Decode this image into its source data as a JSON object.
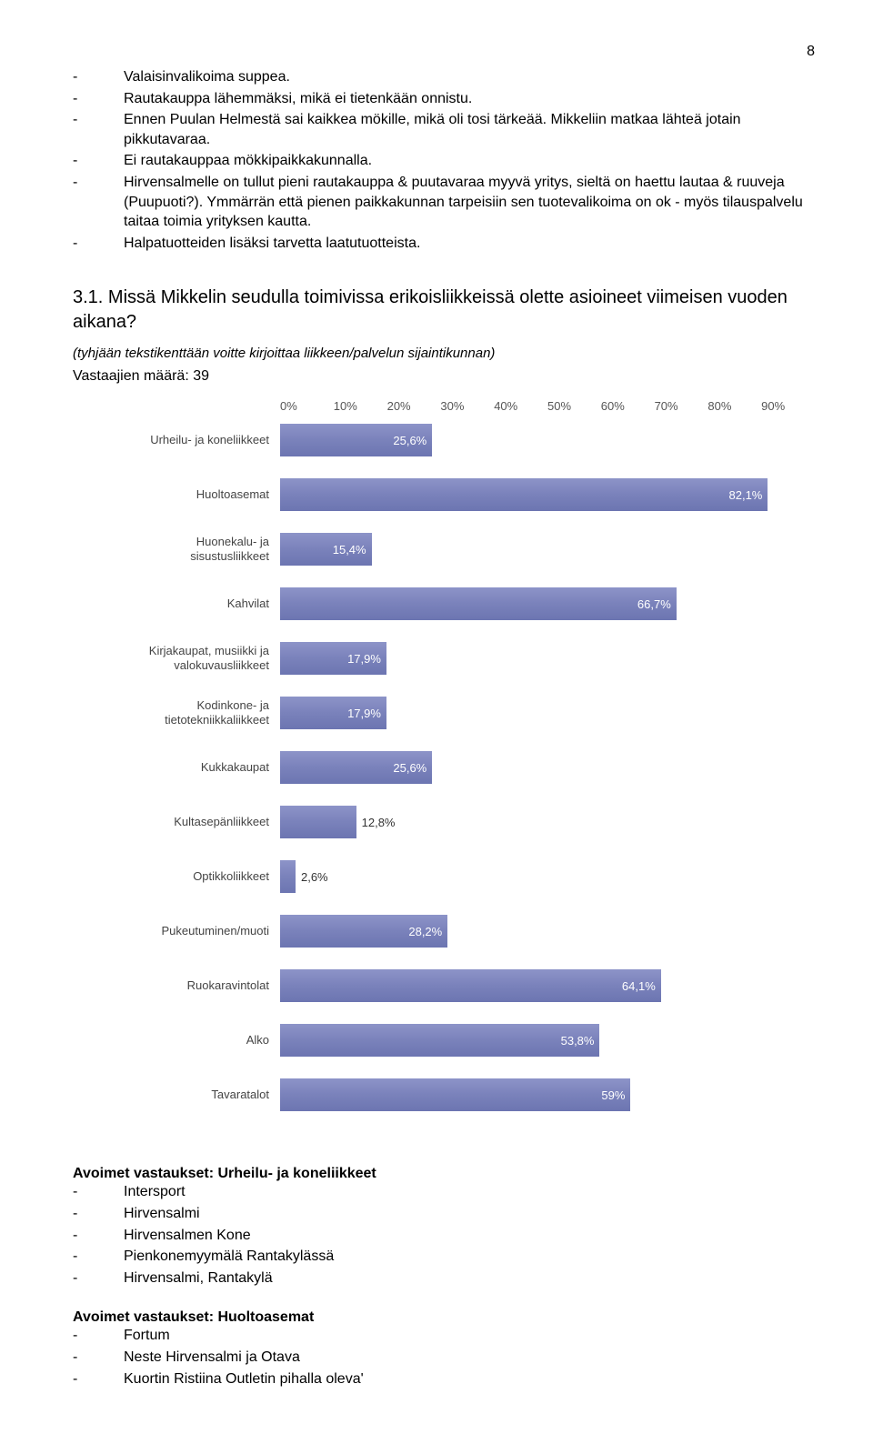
{
  "page_number": "8",
  "bullets_top": [
    "Valaisinvalikoima suppea.",
    "Rautakauppa lähemmäksi, mikä ei tietenkään onnistu.",
    "Ennen Puulan Helmestä sai kaikkea mökille, mikä oli tosi tärkeää. Mikkeliin matkaa lähteä jotain pikkutavaraa.",
    "Ei rautakauppaa mökkipaikkakunnalla.",
    "Hirvensalmelle on tullut pieni rautakauppa & puutavaraa myyvä yritys, sieltä on haettu lautaa & ruuveja (Puupuoti?). Ymmärrän että pienen paikkakunnan tarpeisiin sen tuotevalikoima on ok - myös tilauspalvelu taitaa toimia yrityksen kautta.",
    "Halpatuotteiden lisäksi tarvetta laatutuotteista."
  ],
  "question": {
    "title": "3.1. Missä Mikkelin seudulla toimivissa erikoisliikkeissä olette asioineet viimeisen vuoden aikana?",
    "sub": "(tyhjään tekstikenttään voitte kirjoittaa liikkeen/palvelun sijaintikunnan)",
    "count_label": "Vastaajien määrä: 39"
  },
  "chart": {
    "type": "bar-horizontal",
    "axis_ticks_pct": [
      0,
      10,
      20,
      30,
      40,
      50,
      60,
      70,
      80,
      90
    ],
    "axis_labels": [
      "0%",
      "10%",
      "20%",
      "30%",
      "40%",
      "50%",
      "60%",
      "70%",
      "80%",
      "90%"
    ],
    "max_pct": 90,
    "bar_color": "#7a82bb",
    "label_color": "#444444",
    "value_inside_color": "#ffffff",
    "value_outside_color": "#333333",
    "value_inside_threshold_pct": 15,
    "rows": [
      {
        "label": "Urheilu- ja koneliikkeet",
        "pct": 25.6,
        "text": "25,6%"
      },
      {
        "label": "Huoltoasemat",
        "pct": 82.1,
        "text": "82,1%"
      },
      {
        "label": "Huonekalu- ja sisustusliikkeet",
        "pct": 15.4,
        "text": "15,4%"
      },
      {
        "label": "Kahvilat",
        "pct": 66.7,
        "text": "66,7%"
      },
      {
        "label": "Kirjakaupat, musiikki ja valokuvausliikkeet",
        "pct": 17.9,
        "text": "17,9%"
      },
      {
        "label": "Kodinkone- ja tietotekniikkaliikkeet",
        "pct": 17.9,
        "text": "17,9%"
      },
      {
        "label": "Kukkakaupat",
        "pct": 25.6,
        "text": "25,6%"
      },
      {
        "label": "Kultasepänliikkeet",
        "pct": 12.8,
        "text": "12,8%"
      },
      {
        "label": "Optikkoliikkeet",
        "pct": 2.6,
        "text": "2,6%"
      },
      {
        "label": "Pukeutuminen/muoti",
        "pct": 28.2,
        "text": "28,2%"
      },
      {
        "label": "Ruokaravintolat",
        "pct": 64.1,
        "text": "64,1%"
      },
      {
        "label": "Alko",
        "pct": 53.8,
        "text": "53,8%"
      },
      {
        "label": "Tavaratalot",
        "pct": 59.0,
        "text": "59%"
      }
    ]
  },
  "answers": {
    "group1_title": "Avoimet vastaukset: Urheilu- ja koneliikkeet",
    "group1_items": [
      "Intersport",
      "Hirvensalmi",
      "Hirvensalmen Kone",
      "Pienkonemyymälä Rantakylässä",
      "Hirvensalmi, Rantakylä"
    ],
    "group2_title": "Avoimet vastaukset: Huoltoasemat",
    "group2_items": [
      "Fortum",
      "Neste Hirvensalmi ja Otava",
      "Kuortin Ristiina Outletin pihalla oleva'"
    ]
  }
}
